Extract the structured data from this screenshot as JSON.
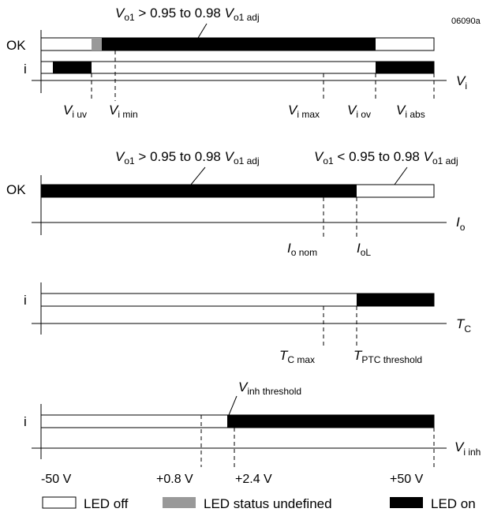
{
  "figure_id": "06090a",
  "panel1": {
    "annotation": {
      "v": "V",
      "o1": "o1",
      "text": " > 0.95 to 0.98 ",
      "v2": "V",
      "sub2": "o1 adj"
    },
    "row_ok": "OK",
    "row_i": "i",
    "axis": {
      "v": "V",
      "sub": "i"
    },
    "markers": [
      {
        "v": "V",
        "sub": "i uv"
      },
      {
        "v": "V",
        "sub": "i min"
      },
      {
        "v": "V",
        "sub": "i max"
      },
      {
        "v": "V",
        "sub": "i ov"
      },
      {
        "v": "V",
        "sub": "i abs"
      }
    ]
  },
  "panel2": {
    "annotation_left": {
      "v": "V",
      "o1": "o1",
      "text": " > 0.95 to 0.98 ",
      "v2": "V",
      "sub2": "o1 adj"
    },
    "annotation_right": {
      "v": "V",
      "o1": "o1",
      "text": " < 0.95 to 0.98 ",
      "v2": "V",
      "sub2": "o1 adj"
    },
    "row_ok": "OK",
    "axis": {
      "v": "I",
      "sub": "o"
    },
    "markers": [
      {
        "v": "I",
        "sub": "o nom"
      },
      {
        "v": "I",
        "sub": "oL"
      }
    ]
  },
  "panel3": {
    "row_i": "i",
    "axis": {
      "v": "T",
      "sub": "C"
    },
    "markers": [
      {
        "v": "T",
        "sub": "C max"
      },
      {
        "v": "T",
        "sub": "PTC threshold"
      }
    ]
  },
  "panel4": {
    "annotation": {
      "v": "V",
      "sub": "inh threshold"
    },
    "row_i": "i",
    "axis": {
      "v": "V",
      "sub": "i inh"
    },
    "ticks": [
      "-50 V",
      "+0.8 V",
      "+2.4 V",
      "+50 V"
    ]
  },
  "legend": {
    "off": "LED off",
    "undefined": "LED status undefined",
    "on": "LED on"
  },
  "colors": {
    "on": "#000000",
    "off": "#ffffff",
    "undefined": "#999999"
  }
}
